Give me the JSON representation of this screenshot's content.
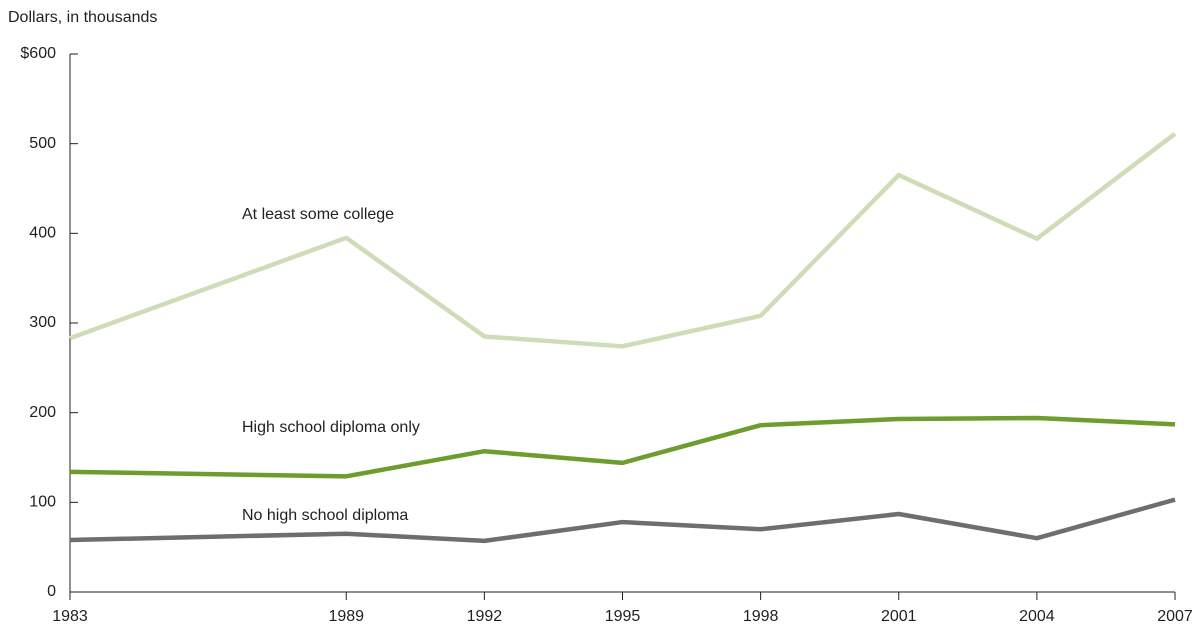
{
  "chart_data": {
    "type": "line",
    "y_axis_label": "Dollars, in thousands",
    "x": [
      1983,
      1989,
      1992,
      1995,
      1998,
      2001,
      2004,
      2007
    ],
    "xlim": [
      1983,
      2007
    ],
    "xticks": [
      1983,
      1989,
      1992,
      1995,
      1998,
      2001,
      2004,
      2007
    ],
    "ylim": [
      0,
      600
    ],
    "yticks": [
      0,
      100,
      200,
      300,
      400,
      500,
      {
        "value": 600,
        "label": "$600"
      }
    ],
    "grid": false,
    "series": [
      {
        "name": "At least some college",
        "color": "#cfdcb8",
        "values": [
          283,
          395,
          285,
          274,
          308,
          465,
          394,
          511
        ]
      },
      {
        "name": "High school diploma only",
        "color": "#6e9c2e",
        "values": [
          134,
          129,
          157,
          144,
          186,
          193,
          194,
          187
        ]
      },
      {
        "name": "No high school diploma",
        "color": "#6d6e70",
        "values": [
          58,
          65,
          57,
          78,
          70,
          87,
          60,
          103
        ]
      }
    ]
  }
}
